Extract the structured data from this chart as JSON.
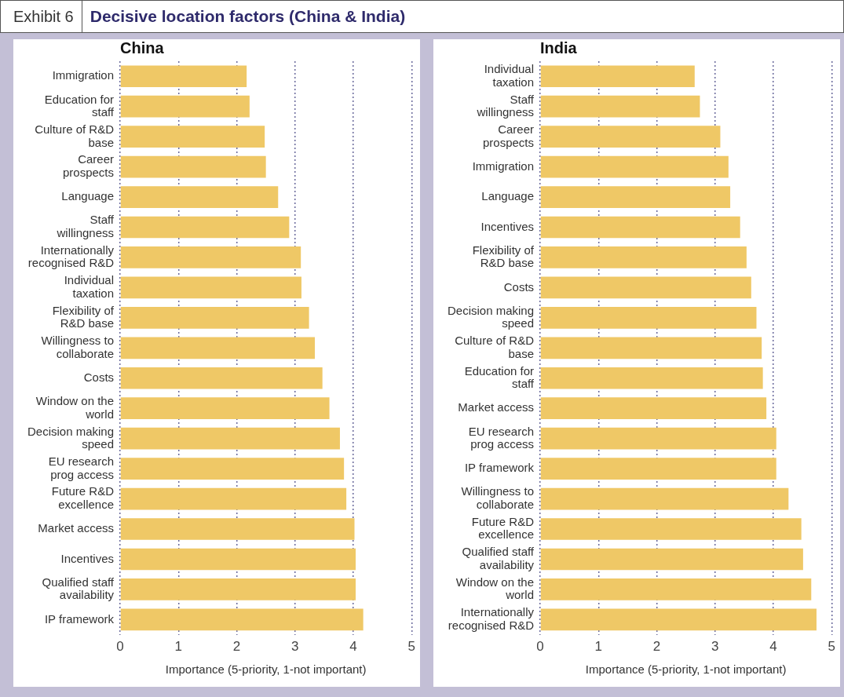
{
  "chart_data": [
    {
      "type": "bar",
      "orientation": "horizontal",
      "title": "China",
      "annotations": [
        "Exhibit 6",
        "Decisive location factors (China & India)"
      ],
      "xlabel": "Importance (5-priority, 1-not important)",
      "categories": [
        "Immigration",
        "Education for staff",
        "Culture of R&D base",
        "Career prospects",
        "Language",
        "Staff willingness",
        "Internationally recognised R&D",
        "Individual taxation",
        "Flexibility of R&D base",
        "Willingness to collaborate",
        "Costs",
        "Window on the world",
        "Decision making speed",
        "EU research prog access",
        "Future R&D excellence",
        "Market access",
        "Incentives",
        "Qualified staff availability",
        "IP framework"
      ],
      "values": [
        2.17,
        2.22,
        2.48,
        2.5,
        2.71,
        2.9,
        3.1,
        3.11,
        3.24,
        3.34,
        3.47,
        3.59,
        3.77,
        3.84,
        3.88,
        4.02,
        4.04,
        4.04,
        4.17
      ],
      "color": "#efc866",
      "xlim": [
        0,
        5
      ],
      "xticks": [
        0,
        1,
        2,
        3,
        4,
        5
      ],
      "grid": "x"
    },
    {
      "type": "bar",
      "orientation": "horizontal",
      "title": "India",
      "xlabel": "Importance (5-priority, 1-not important)",
      "categories": [
        "Individual taxation",
        "Staff willingness",
        "Career prospects",
        "Immigration",
        "Language",
        "Incentives",
        "Flexibility of R&D base",
        "Costs",
        "Decision making speed",
        "Culture of R&D base",
        "Education for staff",
        "Market access",
        "EU research prog access",
        "IP framework",
        "Willingness to collaborate",
        "Future R&D excellence",
        "Qualified staff availability",
        "Window on the world",
        "Internationally recognised R&D"
      ],
      "values": [
        2.65,
        2.74,
        3.09,
        3.23,
        3.26,
        3.43,
        3.54,
        3.62,
        3.71,
        3.8,
        3.82,
        3.88,
        4.05,
        4.05,
        4.26,
        4.48,
        4.51,
        4.65,
        4.74
      ],
      "color": "#efc866",
      "xlim": [
        0,
        5
      ],
      "xticks": [
        0,
        1,
        2,
        3,
        4,
        5
      ],
      "grid": "x"
    }
  ]
}
